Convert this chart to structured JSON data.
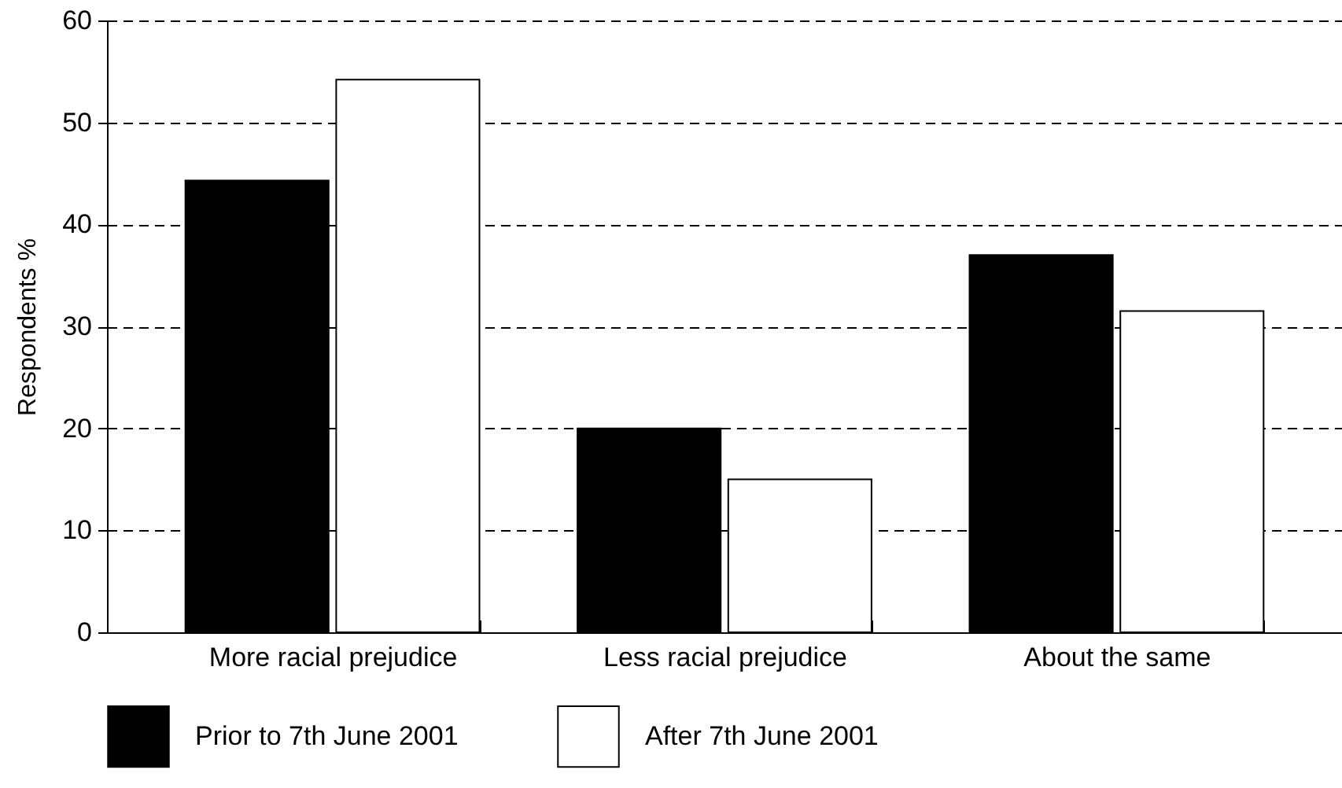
{
  "chart_data": {
    "type": "bar",
    "ylabel": "Respondents %",
    "categories": [
      "More racial prejudice",
      "Less racial prejudice",
      "About the same"
    ],
    "series": [
      {
        "name": "Prior to 7th June 2001",
        "color": "#000000",
        "values": [
          44.3,
          20,
          37
        ]
      },
      {
        "name": "After 7th June 2001",
        "color": "#ffffff",
        "values": [
          54.2,
          15,
          31.5
        ]
      }
    ],
    "ylim": [
      0,
      60
    ],
    "yticks": [
      0,
      10,
      20,
      30,
      40,
      50,
      60
    ],
    "grid": "y",
    "legend": "bottom"
  }
}
